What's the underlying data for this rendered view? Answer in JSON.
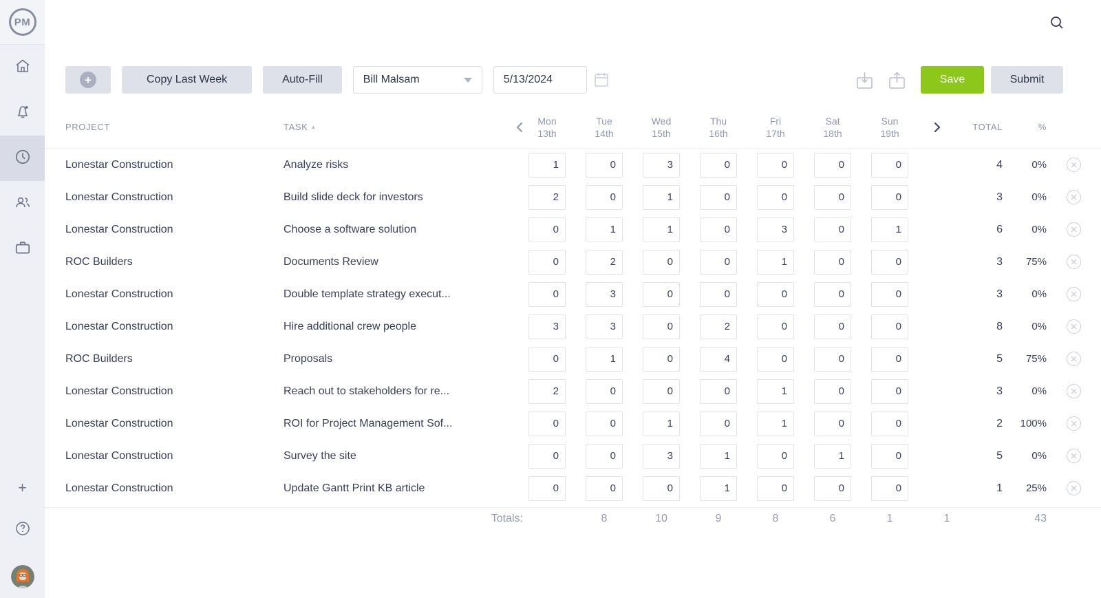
{
  "app": {
    "logo_text": "PM"
  },
  "sidebar": {
    "items": [
      {
        "name": "home"
      },
      {
        "name": "notifications"
      },
      {
        "name": "timesheets",
        "active": true
      },
      {
        "name": "team"
      },
      {
        "name": "projects"
      }
    ],
    "bottom": {
      "add_label": "+",
      "help": "?",
      "avatar": "user-avatar"
    }
  },
  "toolbar": {
    "add_row": "+",
    "copy_last_week_label": "Copy Last Week",
    "autofill_label": "Auto-Fill",
    "user_select_value": "Bill Malsam",
    "date_value": "5/13/2024",
    "save_label": "Save",
    "submit_label": "Submit"
  },
  "colors": {
    "save_green": "#8cc71a",
    "sidebar_bg": "#eef0f6",
    "active_item_bg": "#d9dce6",
    "button_gray": "#dee1ea"
  },
  "table": {
    "columns": {
      "project": "PROJECT",
      "task": "TASK",
      "total": "TOTAL",
      "percent": "%"
    },
    "days": [
      {
        "day": "Mon",
        "date": "13th"
      },
      {
        "day": "Tue",
        "date": "14th"
      },
      {
        "day": "Wed",
        "date": "15th"
      },
      {
        "day": "Thu",
        "date": "16th"
      },
      {
        "day": "Fri",
        "date": "17th"
      },
      {
        "day": "Sat",
        "date": "18th"
      },
      {
        "day": "Sun",
        "date": "19th"
      }
    ],
    "rows": [
      {
        "project": "Lonestar Construction",
        "task": "Analyze risks",
        "hours": [
          1,
          0,
          3,
          0,
          0,
          0,
          0
        ],
        "total": 4,
        "percent": "0%"
      },
      {
        "project": "Lonestar Construction",
        "task": "Build slide deck for investors",
        "hours": [
          2,
          0,
          1,
          0,
          0,
          0,
          0
        ],
        "total": 3,
        "percent": "0%"
      },
      {
        "project": "Lonestar Construction",
        "task": "Choose a software solution",
        "hours": [
          0,
          1,
          1,
          0,
          3,
          0,
          1
        ],
        "total": 6,
        "percent": "0%"
      },
      {
        "project": "ROC Builders",
        "task": "Documents Review",
        "hours": [
          0,
          2,
          0,
          0,
          1,
          0,
          0
        ],
        "total": 3,
        "percent": "75%"
      },
      {
        "project": "Lonestar Construction",
        "task": "Double template strategy execut...",
        "hours": [
          0,
          3,
          0,
          0,
          0,
          0,
          0
        ],
        "total": 3,
        "percent": "0%"
      },
      {
        "project": "Lonestar Construction",
        "task": "Hire additional crew people",
        "hours": [
          3,
          3,
          0,
          2,
          0,
          0,
          0
        ],
        "total": 8,
        "percent": "0%"
      },
      {
        "project": "ROC Builders",
        "task": "Proposals",
        "hours": [
          0,
          1,
          0,
          4,
          0,
          0,
          0
        ],
        "total": 5,
        "percent": "75%"
      },
      {
        "project": "Lonestar Construction",
        "task": "Reach out to stakeholders for re...",
        "hours": [
          2,
          0,
          0,
          0,
          1,
          0,
          0
        ],
        "total": 3,
        "percent": "0%"
      },
      {
        "project": "Lonestar Construction",
        "task": "ROI for Project Management Sof...",
        "hours": [
          0,
          0,
          1,
          0,
          1,
          0,
          0
        ],
        "total": 2,
        "percent": "100%"
      },
      {
        "project": "Lonestar Construction",
        "task": "Survey the site",
        "hours": [
          0,
          0,
          3,
          1,
          0,
          1,
          0
        ],
        "total": 5,
        "percent": "0%"
      },
      {
        "project": "Lonestar Construction",
        "task": "Update Gantt Print KB article",
        "hours": [
          0,
          0,
          0,
          1,
          0,
          0,
          0
        ],
        "total": 1,
        "percent": "25%"
      }
    ],
    "totals": {
      "label": "Totals:",
      "values": [
        8,
        10,
        9,
        8,
        6,
        1,
        1
      ],
      "grand": 43
    }
  }
}
